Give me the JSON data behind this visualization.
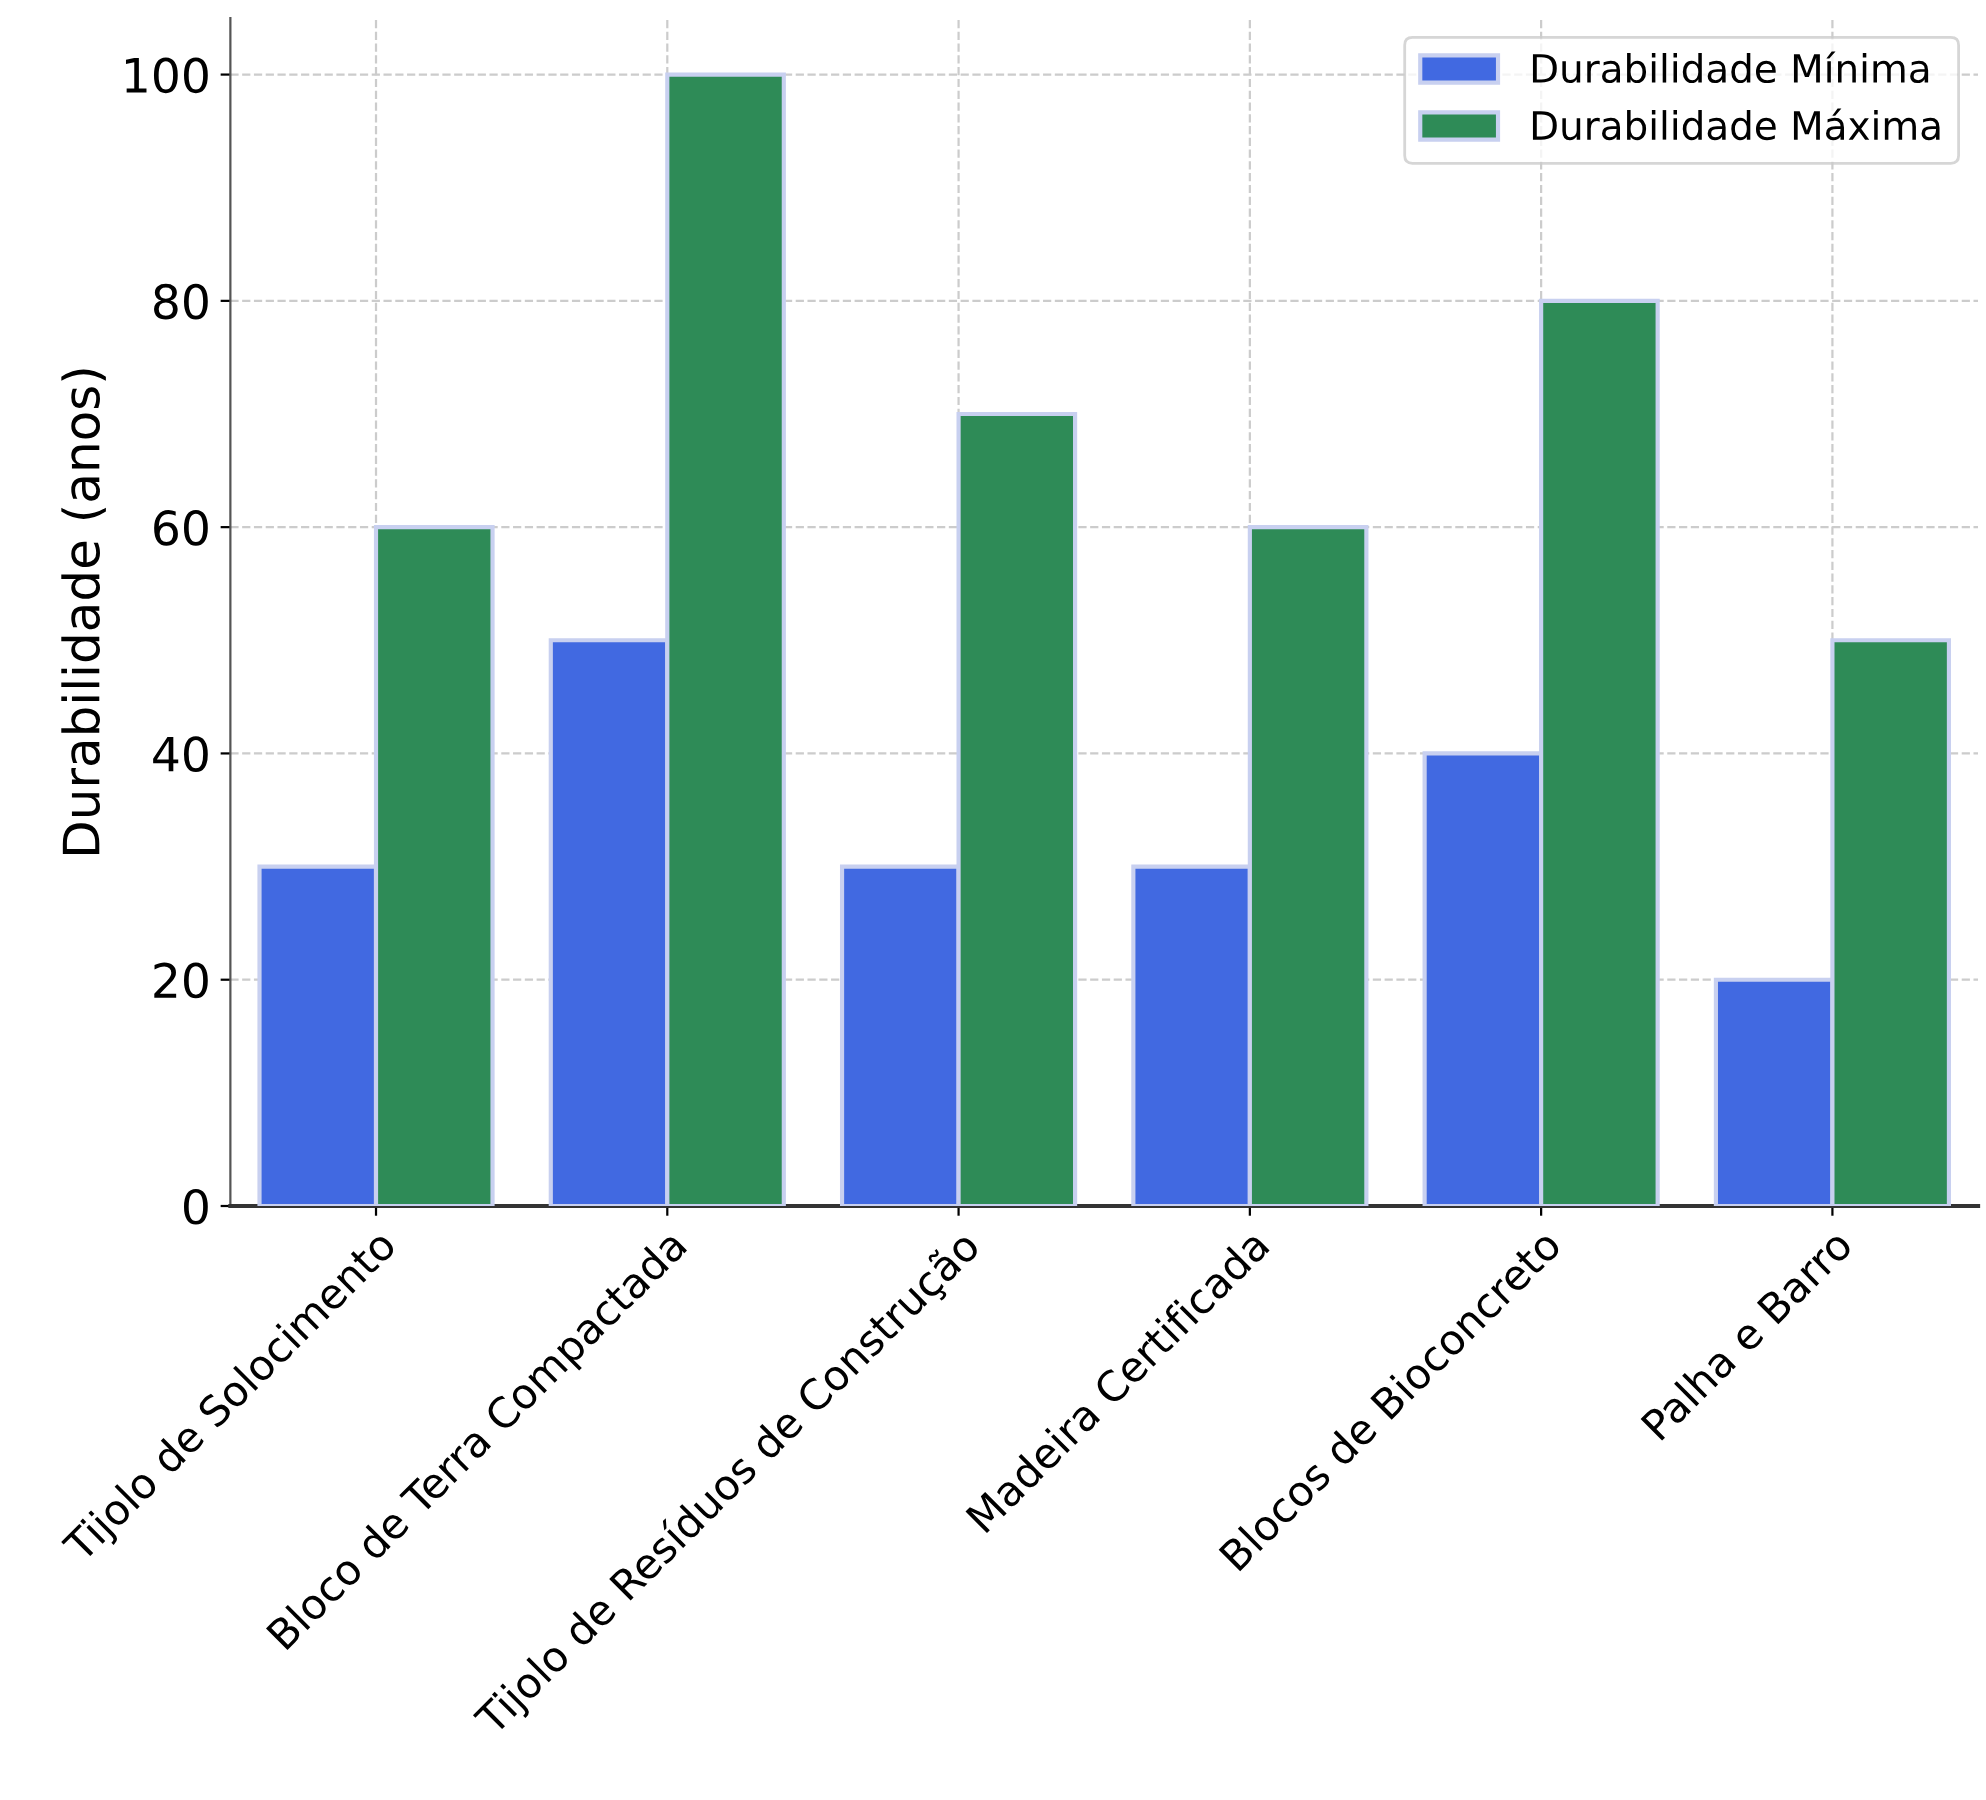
{
  "chart_data": {
    "type": "bar",
    "ylabel": "Durabilidade (anos)",
    "categories": [
      "Tijolo de Solocimento",
      "Bloco de Terra Compactada",
      "Tijolo de Resíduos de Construção",
      "Madeira Certificada",
      "Blocos de Bioconcreto",
      "Palha e Barro"
    ],
    "series": [
      {
        "name": "Durabilidade Mínima",
        "color": "#4169e1",
        "values": [
          30,
          50,
          30,
          30,
          40,
          20
        ]
      },
      {
        "name": "Durabilidade Máxima",
        "color": "#2e8b57",
        "values": [
          60,
          100,
          70,
          60,
          80,
          50
        ]
      }
    ],
    "ylim": [
      0,
      105
    ],
    "yticks": [
      0,
      20,
      40,
      60,
      80,
      100
    ],
    "grid": true,
    "legend": "top right"
  }
}
